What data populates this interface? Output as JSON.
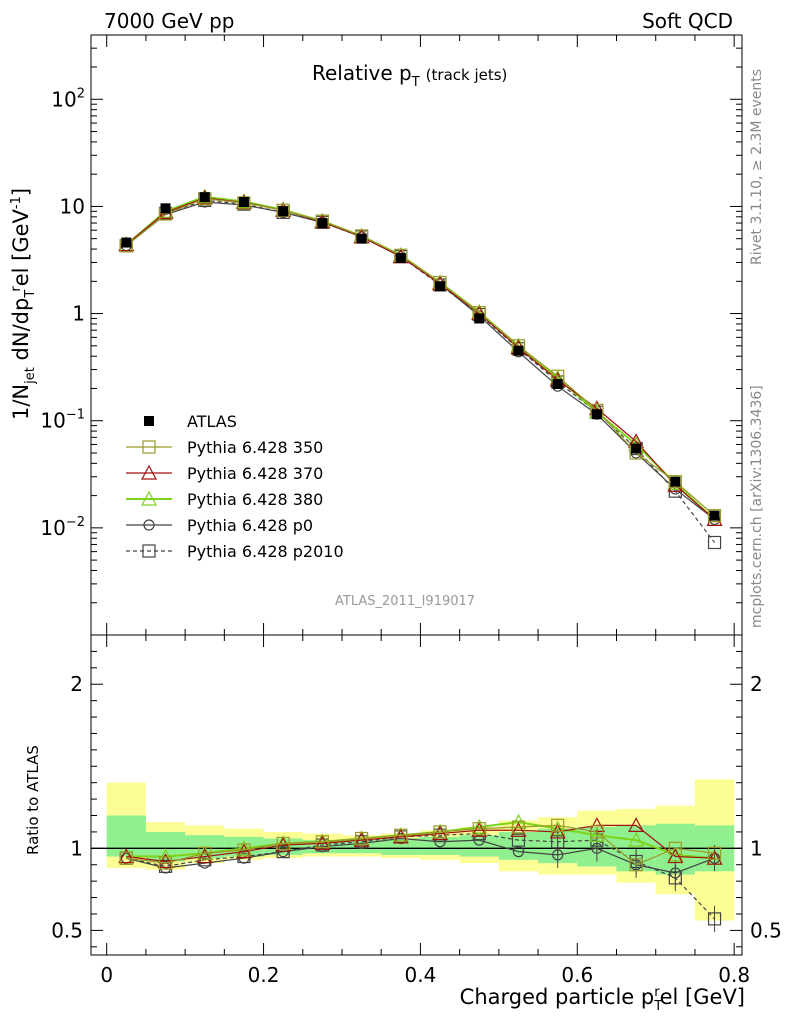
{
  "header": {
    "left": "7000 GeV pp",
    "right": "Soft QCD"
  },
  "side_labels": {
    "rivet": "Rivet 3.1.10, ≥ 2.3M events",
    "mcplots": "mcplots.cern.ch [arXiv:1306.3436]"
  },
  "main_title": {
    "text": "Relative p",
    "sub": "T",
    "suffix": "(track jets)"
  },
  "watermark": "ATLAS_2011_I919017",
  "x_axis": {
    "label": "Charged particle p",
    "label_sub": "T",
    "label_sup": "r",
    "label_end": "el [GeV]",
    "ticks": [
      "0",
      "0.2",
      "0.4",
      "0.6",
      "0.8"
    ]
  },
  "y_axis_main": {
    "label": "1/N",
    "ticks": [
      "10",
      "1",
      "10",
      "10"
    ],
    "tick_exps": [
      "2",
      "",
      "",
      "−1",
      "−2"
    ],
    "tick_bases": [
      "10",
      "10",
      "1",
      "10",
      "10"
    ]
  },
  "y_axis_ratio": {
    "label": "Ratio to ATLAS",
    "ticks": [
      "2",
      "1",
      "0.5"
    ]
  },
  "legend": [
    {
      "name": "ATLAS",
      "color": "#000000",
      "marker": "filled-square",
      "dashed": false
    },
    {
      "name": "Pythia 6.428 350",
      "color": "#9a9a28",
      "marker": "open-square",
      "dashed": false
    },
    {
      "name": "Pythia 6.428 370",
      "color": "#a01010",
      "marker": "open-triangle",
      "dashed": false
    },
    {
      "name": "Pythia 6.428 380",
      "color": "#7cd31a",
      "marker": "open-triangle",
      "dashed": false
    },
    {
      "name": "Pythia 6.428 p0",
      "color": "#444444",
      "marker": "open-circle",
      "dashed": false
    },
    {
      "name": "Pythia 6.428 p2010",
      "color": "#444444",
      "marker": "open-square",
      "dashed": true
    }
  ],
  "chart_data": {
    "type": "line",
    "x": [
      0.025,
      0.075,
      0.125,
      0.175,
      0.225,
      0.275,
      0.325,
      0.375,
      0.425,
      0.475,
      0.525,
      0.575,
      0.625,
      0.675,
      0.725,
      0.775
    ],
    "xlim": [
      -0.02,
      0.81
    ],
    "main_ylim_log10": [
      -3.0,
      2.6
    ],
    "ratio_ylim": [
      0.35,
      2.3
    ],
    "data": {
      "name": "ATLAS",
      "values": [
        4.6,
        9.6,
        12.2,
        11.0,
        9.0,
        7.0,
        5.0,
        3.3,
        1.8,
        0.9,
        0.45,
        0.22,
        0.115,
        0.055,
        0.027,
        0.013
      ],
      "band_green_lo": [
        0.95,
        0.92,
        0.94,
        0.95,
        0.96,
        0.97,
        0.97,
        0.96,
        0.96,
        0.95,
        0.93,
        0.91,
        0.89,
        0.86,
        0.84,
        0.86
      ],
      "band_green_hi": [
        1.2,
        1.1,
        1.08,
        1.07,
        1.06,
        1.05,
        1.05,
        1.06,
        1.07,
        1.08,
        1.1,
        1.12,
        1.13,
        1.14,
        1.15,
        1.14
      ],
      "band_yellow_lo": [
        0.88,
        0.87,
        0.91,
        0.93,
        0.94,
        0.95,
        0.95,
        0.94,
        0.93,
        0.91,
        0.86,
        0.84,
        0.84,
        0.79,
        0.72,
        0.56
      ],
      "band_yellow_hi": [
        1.4,
        1.16,
        1.14,
        1.12,
        1.1,
        1.09,
        1.08,
        1.09,
        1.11,
        1.13,
        1.17,
        1.19,
        1.23,
        1.24,
        1.26,
        1.42
      ]
    },
    "series": [
      {
        "name": "Pythia 6.428 350",
        "values": [
          4.3,
          8.5,
          11.8,
          10.8,
          9.2,
          7.3,
          5.3,
          3.5,
          1.95,
          1.02,
          0.5,
          0.26,
          0.125,
          0.05,
          0.027,
          0.013
        ],
        "ratio": [
          0.94,
          0.91,
          0.97,
          0.99,
          1.03,
          1.04,
          1.06,
          1.08,
          1.1,
          1.12,
          1.13,
          1.14,
          1.1,
          0.9,
          1.0,
          0.97
        ]
      },
      {
        "name": "Pythia 6.428 370",
        "values": [
          4.4,
          8.8,
          12.0,
          10.9,
          9.2,
          7.2,
          5.2,
          3.4,
          1.9,
          1.0,
          0.48,
          0.24,
          0.13,
          0.064,
          0.025,
          0.012
        ],
        "ratio": [
          0.95,
          0.92,
          0.95,
          0.98,
          1.02,
          1.03,
          1.05,
          1.07,
          1.09,
          1.11,
          1.11,
          1.1,
          1.14,
          1.14,
          0.95,
          0.94
        ]
      },
      {
        "name": "Pythia 6.428 380",
        "values": [
          4.4,
          9.0,
          12.3,
          11.1,
          9.3,
          7.3,
          5.3,
          3.5,
          1.95,
          1.03,
          0.5,
          0.25,
          0.12,
          0.06,
          0.026,
          0.012
        ],
        "ratio": [
          0.95,
          0.95,
          0.97,
          1.0,
          1.03,
          1.04,
          1.06,
          1.08,
          1.1,
          1.13,
          1.16,
          1.12,
          1.08,
          1.05,
          0.96,
          0.94
        ]
      },
      {
        "name": "Pythia 6.428 p0",
        "values": [
          4.3,
          8.4,
          11.0,
          10.3,
          8.8,
          7.1,
          5.2,
          3.4,
          1.9,
          0.95,
          0.44,
          0.21,
          0.115,
          0.05,
          0.023,
          0.012
        ],
        "ratio": [
          0.94,
          0.88,
          0.91,
          0.94,
          0.98,
          1.01,
          1.03,
          1.06,
          1.04,
          1.05,
          0.98,
          0.96,
          1.0,
          0.9,
          0.85,
          0.94
        ]
      },
      {
        "name": "Pythia 6.428 p2010",
        "values": [
          4.3,
          8.6,
          11.4,
          10.5,
          8.8,
          7.1,
          5.2,
          3.4,
          1.85,
          0.98,
          0.47,
          0.23,
          0.12,
          0.055,
          0.022,
          0.0073
        ],
        "ratio": [
          0.94,
          0.89,
          0.93,
          0.95,
          0.98,
          1.02,
          1.04,
          1.07,
          1.08,
          1.09,
          1.05,
          1.04,
          1.05,
          0.92,
          0.82,
          0.57
        ]
      }
    ],
    "xlabel": "Charged particle p_T^rel [GeV]",
    "ylabel": "1/N_jet dN/dp_T^rel [GeV^-1]",
    "ratio_ylabel": "Ratio to ATLAS"
  }
}
